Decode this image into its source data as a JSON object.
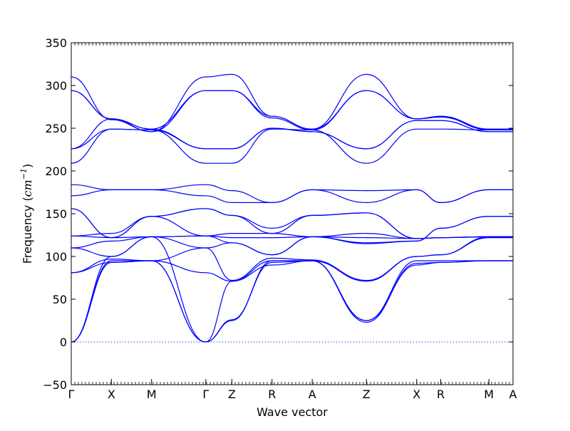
{
  "chart_data": {
    "type": "line",
    "title": "",
    "xlabel": "Wave vector",
    "ylabel": "Frequency (cm⁻¹)",
    "ylabel_prefix": "Frequency (",
    "ylabel_unit_base": "cm",
    "ylabel_unit_exp": "−1",
    "ylabel_suffix": ")",
    "ylim": [
      -50,
      350
    ],
    "yticks": [
      -50,
      0,
      50,
      100,
      150,
      200,
      250,
      300,
      350
    ],
    "xlim": [
      0,
      11.0
    ],
    "grid": false,
    "legend": "none",
    "line_color": "#0000ff",
    "zero_line": {
      "y": 0,
      "style": "dotted",
      "color": "#0000ff"
    },
    "high_symmetry_points": [
      {
        "label": "Γ",
        "x": 0
      },
      {
        "label": "X",
        "x": 1.0
      },
      {
        "label": "M",
        "x": 2.0
      },
      {
        "label": "Γ",
        "x": 3.35
      },
      {
        "label": "Z",
        "x": 4.0
      },
      {
        "label": "R",
        "x": 5.0
      },
      {
        "label": "A",
        "x": 6.0
      },
      {
        "label": "Z",
        "x": 7.35
      },
      {
        "label": "X",
        "x": 8.6
      },
      {
        "label": "R",
        "x": 9.2
      },
      {
        "label": "M",
        "x": 10.4
      },
      {
        "label": "A",
        "x": 11.0
      }
    ],
    "series": [
      {
        "values": [
          0,
          93,
          95,
          0,
          71,
          90,
          95,
          25,
          90,
          93,
          95,
          95
        ]
      },
      {
        "values": [
          0,
          95,
          95,
          0,
          26,
          93,
          95,
          23,
          92,
          93,
          95,
          95
        ]
      },
      {
        "values": [
          0,
          100,
          123,
          0,
          25,
          95,
          95,
          25,
          95,
          95,
          95,
          95
        ]
      },
      {
        "values": [
          81,
          93,
          95,
          81,
          71,
          95,
          95,
          71,
          100,
          102,
          122,
          122
        ]
      },
      {
        "values": [
          81,
          97,
          95,
          110,
          72,
          98,
          96,
          72,
          100,
          102,
          123,
          123
        ]
      },
      {
        "values": [
          110,
          100,
          123,
          110,
          116,
          102,
          123,
          115,
          118,
          133,
          147,
          147
        ]
      },
      {
        "values": [
          110,
          118,
          123,
          124,
          116,
          102,
          123,
          116,
          118,
          133,
          147,
          147
        ]
      },
      {
        "values": [
          124,
          122,
          123,
          124,
          122,
          122,
          123,
          122,
          121,
          122,
          123,
          123
        ]
      },
      {
        "values": [
          124,
          127,
          147,
          124,
          127,
          127,
          123,
          127,
          121,
          122,
          123,
          123
        ]
      },
      {
        "values": [
          156,
          122,
          147,
          156,
          148,
          127,
          148,
          151,
          121,
          122,
          123,
          123
        ]
      },
      {
        "values": [
          156,
          122,
          147,
          156,
          148,
          133,
          148,
          151,
          121,
          122,
          123,
          123
        ]
      },
      {
        "values": [
          171,
          178,
          178,
          171,
          163,
          163,
          178,
          163,
          178,
          163,
          178,
          178
        ]
      },
      {
        "values": [
          184,
          178,
          178,
          184,
          177,
          163,
          178,
          177,
          178,
          163,
          178,
          178
        ]
      },
      {
        "values": [
          209,
          249,
          248,
          209,
          209,
          249,
          248,
          209,
          249,
          249,
          248,
          248
        ]
      },
      {
        "values": [
          226,
          249,
          248,
          226,
          226,
          250,
          246,
          226,
          259,
          259,
          246,
          246
        ]
      },
      {
        "values": [
          226,
          261,
          249,
          226,
          226,
          250,
          246,
          226,
          259,
          259,
          246,
          246
        ]
      },
      {
        "values": [
          294,
          261,
          249,
          294,
          294,
          262,
          248,
          294,
          261,
          263,
          248,
          248
        ]
      },
      {
        "values": [
          294,
          261,
          246,
          294,
          294,
          264,
          249,
          294,
          261,
          264,
          249,
          249
        ]
      },
      {
        "values": [
          310,
          260,
          246,
          310,
          313,
          264,
          249,
          313,
          261,
          264,
          249,
          249
        ]
      }
    ]
  }
}
